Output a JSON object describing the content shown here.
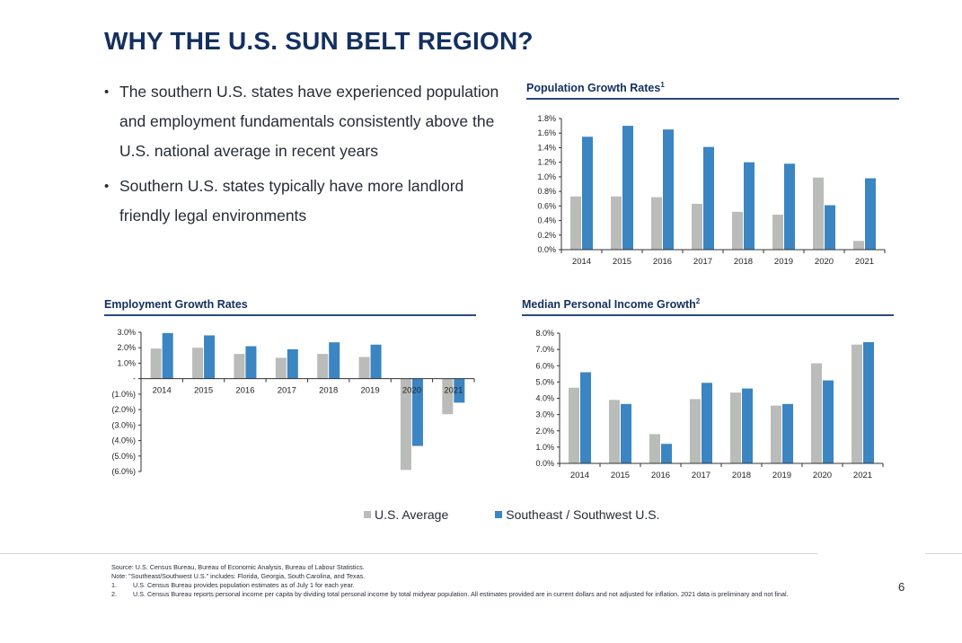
{
  "title": "WHY THE U.S. SUN BELT REGION?",
  "bullets": [
    "The southern U.S. states have experienced population and employment fundamentals consistently above the U.S. national average in recent years",
    "Southern U.S. states typically have more landlord friendly legal environments"
  ],
  "colors": {
    "us": "#b9bcb8",
    "se": "#3b85c2",
    "title": "#14305f"
  },
  "legend": {
    "us": "U.S. Average",
    "se": "Southeast / Southwest U.S."
  },
  "chart_data": [
    {
      "id": "population",
      "type": "bar",
      "title": "Population Growth Rates",
      "title_sup": "1",
      "categories": [
        "2014",
        "2015",
        "2016",
        "2017",
        "2018",
        "2019",
        "2020",
        "2021"
      ],
      "series": [
        {
          "name": "U.S. Average",
          "values": [
            0.73,
            0.73,
            0.72,
            0.63,
            0.52,
            0.48,
            0.99,
            0.12
          ]
        },
        {
          "name": "Southeast / Southwest U.S.",
          "values": [
            1.55,
            1.7,
            1.65,
            1.41,
            1.2,
            1.18,
            0.61,
            0.98
          ]
        }
      ],
      "ylim": [
        0,
        1.8
      ],
      "yticks": [
        0,
        0.2,
        0.4,
        0.6,
        0.8,
        1.0,
        1.2,
        1.4,
        1.6,
        1.8
      ],
      "ytick_labels": [
        "0.0%",
        "0.2%",
        "0.4%",
        "0.6%",
        "0.8%",
        "1.0%",
        "1.2%",
        "1.4%",
        "1.6%",
        "1.8%"
      ]
    },
    {
      "id": "employment",
      "type": "bar",
      "title": "Employment Growth Rates",
      "title_sup": "",
      "categories": [
        "2014",
        "2015",
        "2016",
        "2017",
        "2018",
        "2019",
        "2020",
        "2021"
      ],
      "series": [
        {
          "name": "U.S. Average",
          "values": [
            1.95,
            2.0,
            1.6,
            1.35,
            1.6,
            1.4,
            -5.9,
            -2.3
          ]
        },
        {
          "name": "Southeast / Southwest U.S.",
          "values": [
            2.95,
            2.8,
            2.1,
            1.9,
            2.35,
            2.2,
            -4.35,
            -1.55
          ]
        }
      ],
      "ylim": [
        -6,
        3
      ],
      "yticks": [
        3,
        2,
        1,
        0,
        -1,
        -2,
        -3,
        -4,
        -5,
        -6
      ],
      "ytick_labels": [
        "3.0%",
        "2.0%",
        "1.0%",
        "-",
        "(1.0%)",
        "(2.0%)",
        "(3.0%)",
        "(4.0%)",
        "(5.0%)",
        "(6.0%)"
      ]
    },
    {
      "id": "income",
      "type": "bar",
      "title": "Median Personal Income Growth",
      "title_sup": "2",
      "categories": [
        "2014",
        "2015",
        "2016",
        "2017",
        "2018",
        "2019",
        "2020",
        "2021"
      ],
      "series": [
        {
          "name": "U.S. Average",
          "values": [
            4.65,
            3.9,
            1.8,
            3.95,
            4.35,
            3.55,
            6.15,
            7.3
          ]
        },
        {
          "name": "Southeast / Southwest U.S.",
          "values": [
            5.6,
            3.65,
            1.2,
            4.95,
            4.6,
            3.65,
            5.1,
            7.45
          ]
        }
      ],
      "ylim": [
        0,
        8
      ],
      "yticks": [
        0,
        1,
        2,
        3,
        4,
        5,
        6,
        7,
        8
      ],
      "ytick_labels": [
        "0.0%",
        "1.0%",
        "2.0%",
        "3.0%",
        "4.0%",
        "5.0%",
        "6.0%",
        "7.0%",
        "8.0%"
      ]
    }
  ],
  "notes": {
    "source": "Source: U.S. Census Bureau, Bureau of Economic Analysis, Bureau of Labour Statistics.",
    "note": "Note: \"Southeast/Southwest U.S.\" includes: Florida, Georgia, South Carolina, and Texas.",
    "fn1": "U.S. Census Bureau provides population estimates as of July 1 for each year.",
    "fn2": "U.S. Census Bureau reports personal income per capita by dividing total personal income by total midyear population. All estimates provided are in current dollars and not adjusted for inflation. 2021 data is preliminary and not final."
  },
  "page_number": "6"
}
